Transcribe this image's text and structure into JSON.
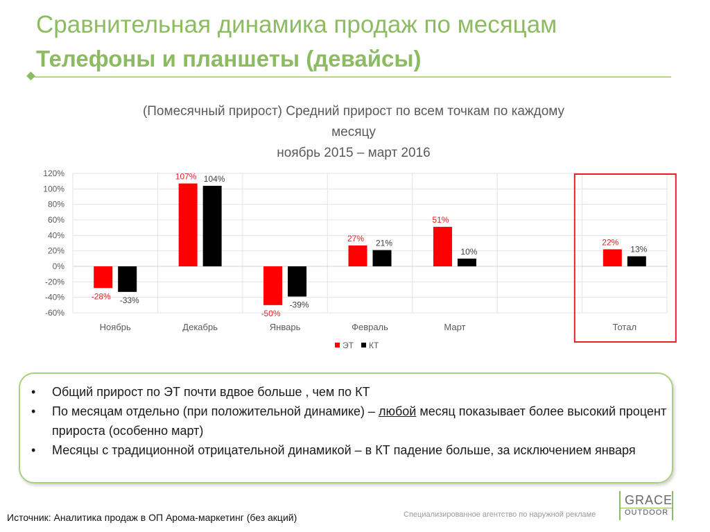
{
  "header": {
    "title": "Сравнительная динамика продаж по месяцам",
    "subtitle": "Телефоны и планшеты (девайсы)"
  },
  "chart_data": {
    "type": "bar",
    "title": "(Помесячный прирост) Средний прирост по всем точкам по каждому месяцу ноябрь 2015 – март 2016",
    "title_lines": [
      "(Помесячный прирост) Средний прирост по всем точкам по каждому",
      "месяцу",
      "ноябрь 2015 – март 2016"
    ],
    "categories": [
      "Ноябрь",
      "Декабрь",
      "Январь",
      "Февраль",
      "Март",
      "Тотал"
    ],
    "series": [
      {
        "name": "ЭТ",
        "color": "#ff0000",
        "values": [
          -28,
          107,
          -50,
          27,
          51,
          22
        ],
        "labels": [
          "-28%",
          "107%",
          "-50%",
          "27%",
          "51%",
          "22%"
        ]
      },
      {
        "name": "КТ",
        "color": "#000000",
        "values": [
          -33,
          104,
          -39,
          21,
          10,
          13
        ],
        "labels": [
          "-33%",
          "104%",
          "-39%",
          "21%",
          "10%",
          "13%"
        ]
      }
    ],
    "ylim": [
      -60,
      120
    ],
    "yticks": [
      "120%",
      "100%",
      "80%",
      "60%",
      "40%",
      "20%",
      "0%",
      "-20%",
      "-40%",
      "-60%"
    ],
    "grid": true,
    "legend": "bottom-center",
    "highlight_category": "Тотал",
    "highlight_color": "#e31e24"
  },
  "callout": {
    "bullets": [
      {
        "text": "Общий прирост по ЭТ почти вдвое больше , чем по КТ"
      },
      {
        "pre": "По месяцам отдельно (при положительной динамике) – ",
        "u": "любой",
        "post": " месяц показывает более высокий процент прироста (особенно март)"
      },
      {
        "text": "Месяцы с традиционной отрицательной динамикой – в КТ падение больше, за исключением января"
      }
    ],
    "bullet_char": "•"
  },
  "footer": {
    "source": "Источник: Аналитика продаж в ОП Арома-маркетинг (без акций)",
    "agency": "Специализированное агентство по наружной рекламе"
  },
  "logo": {
    "line1": "GRACE",
    "line2": "OUTDOOR"
  }
}
